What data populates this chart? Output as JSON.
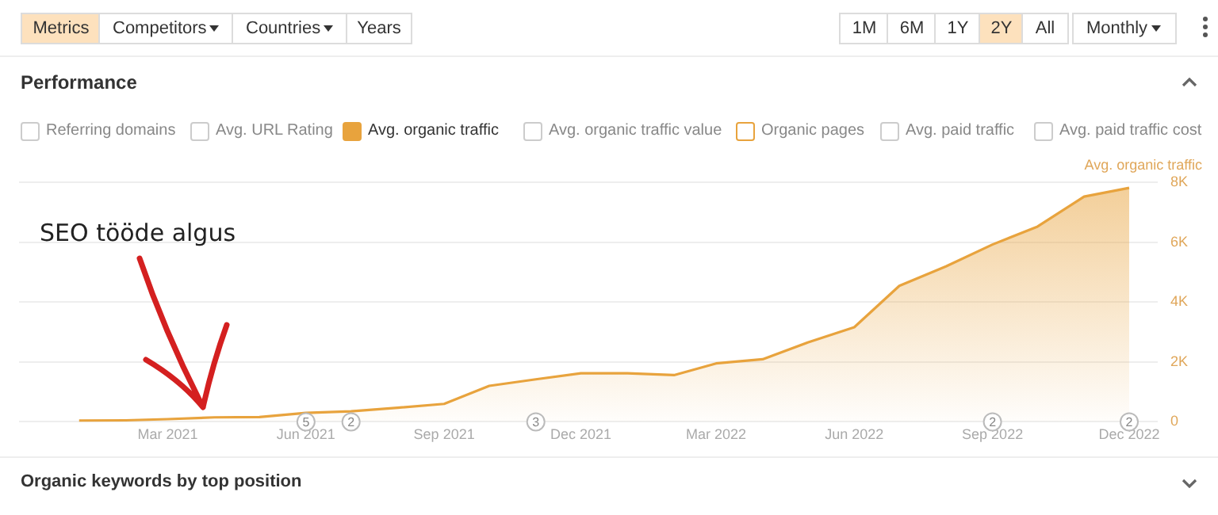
{
  "chart_data": {
    "type": "area",
    "title": "Performance",
    "ylabel": "Avg. organic traffic",
    "x": [
      "2021-01",
      "2021-02",
      "2021-03",
      "2021-04",
      "2021-05",
      "2021-06",
      "2021-07",
      "2021-08",
      "2021-09",
      "2021-10",
      "2021-11",
      "2021-12",
      "2022-01",
      "2022-02",
      "2022-03",
      "2022-04",
      "2022-05",
      "2022-06",
      "2022-07",
      "2022-08",
      "2022-09",
      "2022-10",
      "2022-11",
      "2022-12"
    ],
    "series": [
      {
        "color": "#e8a33d",
        "values": [
          40,
          50,
          90,
          150,
          160,
          300,
          350,
          470,
          600,
          1200,
          1420,
          1620,
          1620,
          1560,
          1950,
          2090,
          2650,
          3160,
          4540,
          5190,
          5920,
          6520,
          7520,
          7810
        ]
      }
    ],
    "xlim": [
      "2020-11-22",
      "2022-12-20"
    ],
    "xticks": [
      {
        "value": "2021-03",
        "label": "Mar 2021"
      },
      {
        "value": "2021-06",
        "label": "Jun 2021"
      },
      {
        "value": "2021-09",
        "label": "Sep 2021"
      },
      {
        "value": "2021-12",
        "label": "Dec 2021"
      },
      {
        "value": "2022-03",
        "label": "Mar 2022"
      },
      {
        "value": "2022-06",
        "label": "Jun 2022"
      },
      {
        "value": "2022-09",
        "label": "Sep 2022"
      },
      {
        "value": "2022-12",
        "label": "Dec 2022"
      }
    ],
    "ylim": [
      0,
      8000
    ],
    "yticks": [
      0,
      {
        "value": 2000,
        "label": "2K"
      },
      {
        "value": 4000,
        "label": "4K"
      },
      {
        "value": 6000,
        "label": "6K"
      },
      {
        "value": 8000,
        "label": "8K"
      }
    ],
    "grid": "y",
    "legend": false,
    "annotations": [
      "Metrics",
      "Competitors",
      "Countries",
      "Years",
      "1M",
      "6M",
      "1Y",
      "2Y",
      "All",
      "Monthly",
      "Referring domains",
      "Avg. URL Rating",
      "Avg. organic traffic",
      "Avg. organic traffic value",
      "Organic pages",
      "Avg. paid traffic",
      "Avg. paid traffic cost",
      "Organic keywords by top position",
      "SEO tööde algus",
      {
        "text": "5",
        "x": "2021-06",
        "y": 0
      },
      {
        "text": "2",
        "x": "2021-07",
        "y": 0
      },
      {
        "text": "3",
        "x": "2021-11",
        "y": 0
      },
      {
        "text": "2",
        "x": "2022-09",
        "y": 0
      },
      {
        "text": "2",
        "x": "2022-12",
        "y": 0
      }
    ]
  }
}
